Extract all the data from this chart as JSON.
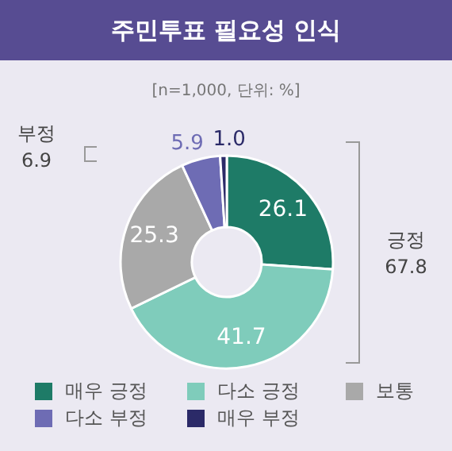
{
  "chart_data": {
    "type": "donut",
    "title": "주민투표 필요성 인식",
    "subtitle": "[n=1,000, 단위: %]",
    "categories": [
      "매우 긍정",
      "다소 긍정",
      "보통",
      "다소 부정",
      "매우 부정"
    ],
    "values": [
      26.1,
      41.7,
      25.3,
      5.9,
      1.0
    ],
    "colors": [
      "#1e7b67",
      "#7fccbb",
      "#a9a9a9",
      "#6e6cb4",
      "#2b2a68"
    ],
    "value_labels": [
      "26.1",
      "41.7",
      "25.3",
      "5.9",
      "1.0"
    ],
    "legend": "bottom",
    "annotations": [
      "부정\n6.9",
      "긍정\n67.8"
    ]
  }
}
